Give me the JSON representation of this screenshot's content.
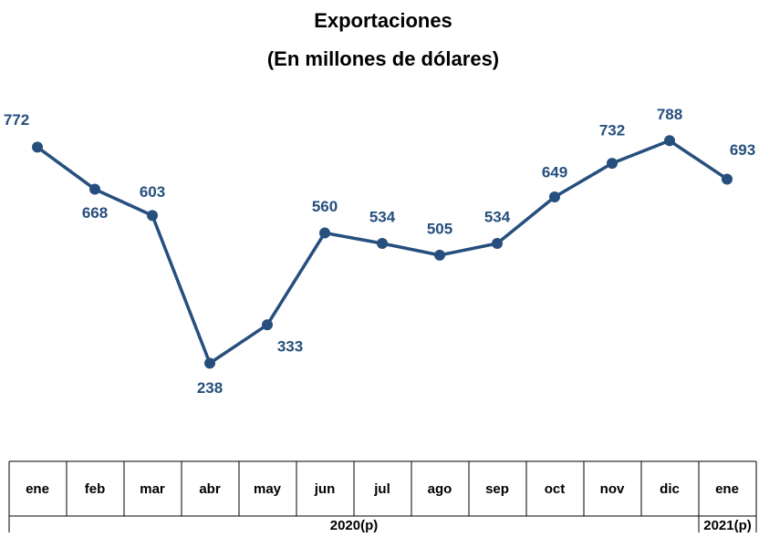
{
  "chart_data": {
    "type": "line",
    "title": "Exportaciones",
    "subtitle": "(En millones de dólares)",
    "categories": [
      "ene",
      "feb",
      "mar",
      "abr",
      "may",
      "jun",
      "jul",
      "ago",
      "sep",
      "oct",
      "nov",
      "dic",
      "ene"
    ],
    "groups": [
      {
        "label": "2020(p)",
        "count": 12
      },
      {
        "label": "2021(p)",
        "count": 1
      }
    ],
    "series": [
      {
        "name": "Exportaciones",
        "color": "#264f7d",
        "values": [
          772,
          668,
          603,
          238,
          333,
          560,
          534,
          505,
          534,
          649,
          732,
          788,
          693
        ]
      }
    ],
    "ylim": [
      0,
      900
    ]
  }
}
